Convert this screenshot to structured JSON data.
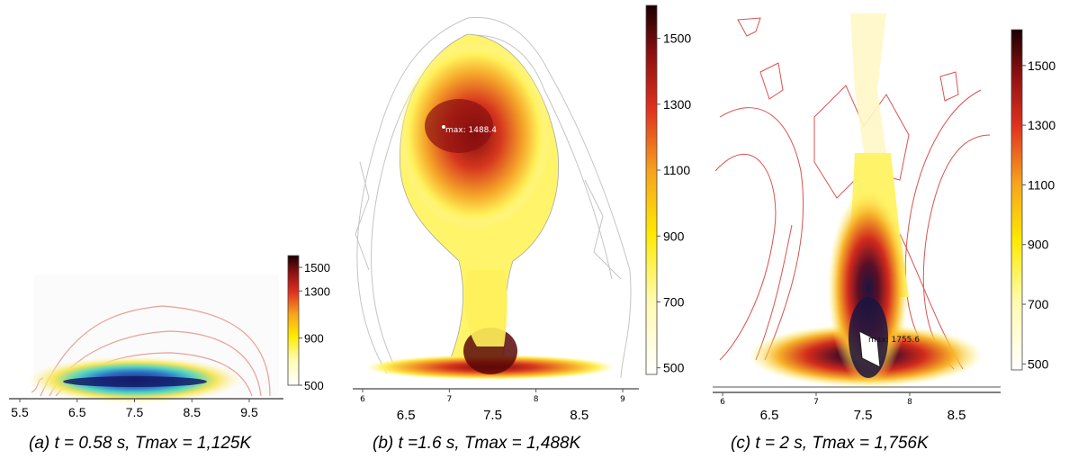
{
  "chart_data": [
    {
      "type": "heatmap",
      "panel": "a",
      "caption": "(a) t = 0.58 s, Tmax = 1,125K",
      "x_ticks": [
        "5.5",
        "6.5",
        "7.5",
        "8.5",
        "9.5"
      ],
      "colorbar_ticks": [
        "1500",
        "1300",
        "900",
        "500"
      ],
      "colorbar_range": [
        500,
        1600
      ],
      "hotspot": {
        "x": 7.6,
        "temperature": 1125
      }
    },
    {
      "type": "heatmap",
      "panel": "b",
      "caption": "(b) t =1.6 s, Tmax = 1,488K",
      "x_ticks": [
        "6.5",
        "7.5",
        "8.5"
      ],
      "x_minor_ticks": [
        "6",
        "7",
        "8",
        "9"
      ],
      "colorbar_ticks": [
        "1500",
        "1300",
        "1100",
        "900",
        "700",
        "500"
      ],
      "colorbar_range": [
        480,
        1600
      ],
      "annotation": "max: 1488.4",
      "hotspot": {
        "x": 6.9,
        "temperature": 1488.4
      }
    },
    {
      "type": "heatmap",
      "panel": "c",
      "caption": "(c) t = 2 s, Tmax = 1,756K",
      "x_ticks": [
        "6.5",
        "7.5",
        "8.5"
      ],
      "x_minor_ticks": [
        "6",
        "7",
        "8"
      ],
      "colorbar_ticks": [
        "1500",
        "1300",
        "1100",
        "900",
        "700",
        "500"
      ],
      "colorbar_range": [
        480,
        1620
      ],
      "annotation": "max: 1755.6",
      "hotspot": {
        "x": 7.5,
        "temperature": 1755.6
      }
    }
  ],
  "colors": {
    "contour_red": "#d9534f",
    "contour_grey": "#b8b8b8",
    "flame_yellow": "#fff200",
    "flame_orange": "#f39c12",
    "flame_red": "#c0392b",
    "flame_dark": "#3b0a0a",
    "flame_core": "#1a1540"
  }
}
